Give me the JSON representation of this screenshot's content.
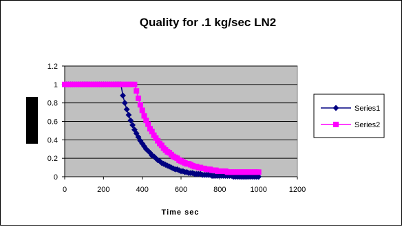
{
  "chart_data": {
    "type": "scatter",
    "title": "Quality for .1 kg/sec LN2",
    "xlabel": "Time sec",
    "ylabel": "",
    "xlim": [
      0,
      1200
    ],
    "ylim": [
      0,
      1.2
    ],
    "xticks": [
      0,
      200,
      400,
      600,
      800,
      1000,
      1200
    ],
    "yticks": [
      0,
      0.2,
      0.4,
      0.6,
      0.8,
      1,
      1.2
    ],
    "grid": true,
    "legend_position": "right",
    "series": [
      {
        "name": "Series1",
        "color": "#000080",
        "marker": "diamond",
        "line": true,
        "x": [
          0,
          10,
          20,
          30,
          40,
          50,
          60,
          70,
          80,
          90,
          100,
          110,
          120,
          130,
          140,
          150,
          160,
          170,
          180,
          190,
          200,
          210,
          220,
          230,
          240,
          250,
          260,
          270,
          280,
          290,
          300,
          310,
          320,
          330,
          340,
          350,
          360,
          370,
          380,
          390,
          400,
          410,
          420,
          430,
          440,
          450,
          460,
          470,
          480,
          490,
          500,
          510,
          520,
          530,
          540,
          550,
          560,
          570,
          580,
          590,
          600,
          610,
          620,
          630,
          640,
          650,
          660,
          670,
          680,
          690,
          700,
          710,
          720,
          730,
          740,
          750,
          760,
          770,
          780,
          790,
          800,
          810,
          820,
          830,
          840,
          850,
          860,
          870,
          880,
          890,
          900,
          910,
          920,
          930,
          940,
          950,
          960,
          970,
          980,
          990,
          1000
        ],
        "y": [
          1,
          1,
          1,
          1,
          1,
          1,
          1,
          1,
          1,
          1,
          1,
          1,
          1,
          1,
          1,
          1,
          1,
          1,
          1,
          1,
          1,
          1,
          1,
          1,
          1,
          1,
          1,
          1,
          1,
          1,
          0.88,
          0.8,
          0.73,
          0.67,
          0.61,
          0.56,
          0.51,
          0.47,
          0.43,
          0.39,
          0.36,
          0.33,
          0.3,
          0.28,
          0.26,
          0.23,
          0.22,
          0.2,
          0.18,
          0.17,
          0.15,
          0.14,
          0.13,
          0.12,
          0.11,
          0.1,
          0.09,
          0.08,
          0.08,
          0.07,
          0.06,
          0.06,
          0.05,
          0.05,
          0.04,
          0.04,
          0.04,
          0.03,
          0.03,
          0.03,
          0.03,
          0.02,
          0.02,
          0.02,
          0.02,
          0.02,
          0.01,
          0.01,
          0.01,
          0.01,
          0.01,
          0.01,
          0.01,
          0.01,
          0.01,
          0.01,
          0.01,
          0,
          0,
          0,
          0,
          0,
          0,
          0,
          0,
          0,
          0,
          0,
          0,
          0,
          0
        ]
      },
      {
        "name": "Series2",
        "color": "#FF00FF",
        "marker": "square",
        "line": true,
        "x": [
          0,
          10,
          20,
          30,
          40,
          50,
          60,
          70,
          80,
          90,
          100,
          110,
          120,
          130,
          140,
          150,
          160,
          170,
          180,
          190,
          200,
          210,
          220,
          230,
          240,
          250,
          260,
          270,
          280,
          290,
          300,
          310,
          320,
          330,
          340,
          350,
          360,
          370,
          380,
          390,
          400,
          410,
          420,
          430,
          440,
          450,
          460,
          470,
          480,
          490,
          500,
          510,
          520,
          530,
          540,
          550,
          560,
          570,
          580,
          590,
          600,
          610,
          620,
          630,
          640,
          650,
          660,
          670,
          680,
          690,
          700,
          710,
          720,
          730,
          740,
          750,
          760,
          770,
          780,
          790,
          800,
          810,
          820,
          830,
          840,
          850,
          860,
          870,
          880,
          890,
          900,
          910,
          920,
          930,
          940,
          950,
          960,
          970,
          980,
          990,
          1000
        ],
        "y": [
          1,
          1,
          1,
          1,
          1,
          1,
          1,
          1,
          1,
          1,
          1,
          1,
          1,
          1,
          1,
          1,
          1,
          1,
          1,
          1,
          1,
          1,
          1,
          1,
          1,
          1,
          1,
          1,
          1,
          1,
          1,
          1,
          1,
          1,
          1,
          1,
          1,
          0.93,
          0.85,
          0.78,
          0.72,
          0.66,
          0.61,
          0.57,
          0.52,
          0.49,
          0.45,
          0.42,
          0.39,
          0.36,
          0.34,
          0.31,
          0.29,
          0.27,
          0.26,
          0.24,
          0.22,
          0.21,
          0.2,
          0.18,
          0.17,
          0.16,
          0.15,
          0.14,
          0.14,
          0.13,
          0.12,
          0.11,
          0.11,
          0.1,
          0.1,
          0.09,
          0.09,
          0.08,
          0.08,
          0.08,
          0.07,
          0.07,
          0.07,
          0.06,
          0.06,
          0.06,
          0.06,
          0.06,
          0.05,
          0.05,
          0.05,
          0.05,
          0.05,
          0.05,
          0.05,
          0.05,
          0.05,
          0.05,
          0.05,
          0.05,
          0.05,
          0.05,
          0.05,
          0.05,
          0.05
        ]
      }
    ]
  }
}
